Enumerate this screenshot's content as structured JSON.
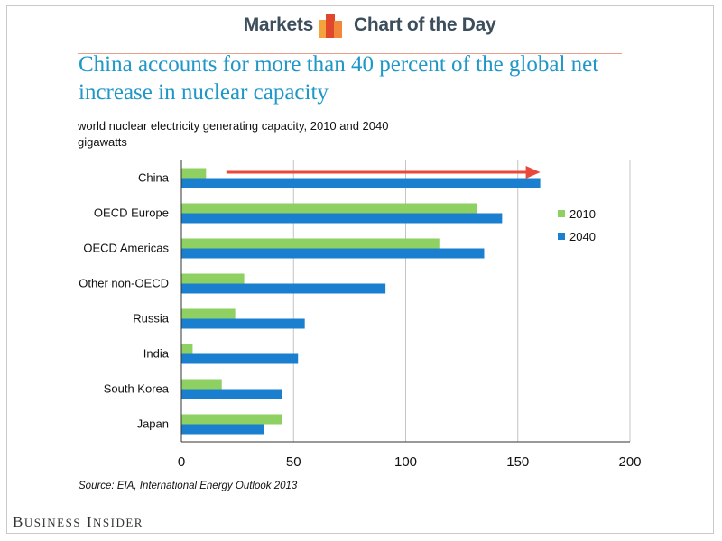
{
  "header": {
    "left_label": "Markets",
    "right_label": "Chart of the Day",
    "logo_icon": "bar-chart-logo-icon",
    "accent": "#e8a188"
  },
  "title": "China accounts for more than 40 percent of the global net increase in nuclear capacity",
  "subtitle_line1": "world nuclear electricity generating capacity, 2010 and 2040",
  "subtitle_line2": "gigawatts",
  "source": "Source:  EIA, International Energy Outlook 2013",
  "footer": {
    "brand": "Business Insider"
  },
  "chart_data": {
    "type": "bar",
    "orientation": "horizontal",
    "categories": [
      "China",
      "OECD Europe",
      "OECD Americas",
      "Other non-OECD",
      "Russia",
      "India",
      "South Korea",
      "Japan"
    ],
    "series": [
      {
        "name": "2010",
        "color": "#8ed162",
        "values": [
          11,
          132,
          115,
          28,
          24,
          5,
          18,
          45
        ]
      },
      {
        "name": "2040",
        "color": "#1a7fcf",
        "values": [
          160,
          143,
          135,
          91,
          55,
          52,
          45,
          37
        ]
      }
    ],
    "xlim": [
      0,
      200
    ],
    "xticks": [
      0,
      50,
      100,
      150,
      200
    ],
    "grid": true,
    "legend": "right",
    "annotation": {
      "type": "arrow",
      "color": "#e8493a",
      "from": 12,
      "to": 160,
      "category": "China"
    }
  }
}
